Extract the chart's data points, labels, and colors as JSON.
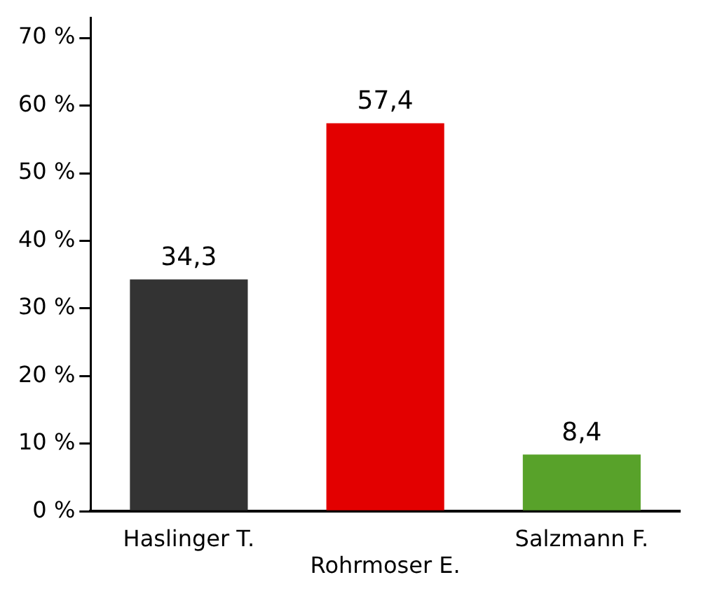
{
  "chart_data": {
    "type": "bar",
    "categories": [
      "Haslinger T.",
      "Rohrmoser E.",
      "Salzmann F."
    ],
    "values": [
      34.3,
      57.4,
      8.4
    ],
    "colors": [
      "#333333",
      "#e30000",
      "#58a22a"
    ],
    "value_labels": [
      "34,3",
      "57,4",
      "8,4"
    ],
    "ylim": [
      0,
      73
    ],
    "yticks": [
      {
        "value": 0,
        "label": "0 %"
      },
      {
        "value": 10,
        "label": "10 %"
      },
      {
        "value": 20,
        "label": "20 %"
      },
      {
        "value": 30,
        "label": "30 %"
      },
      {
        "value": 40,
        "label": "40 %"
      },
      {
        "value": 50,
        "label": "50 %"
      },
      {
        "value": 60,
        "label": "60 %"
      },
      {
        "value": 70,
        "label": "70 %"
      }
    ],
    "grid": false,
    "legend": false
  }
}
